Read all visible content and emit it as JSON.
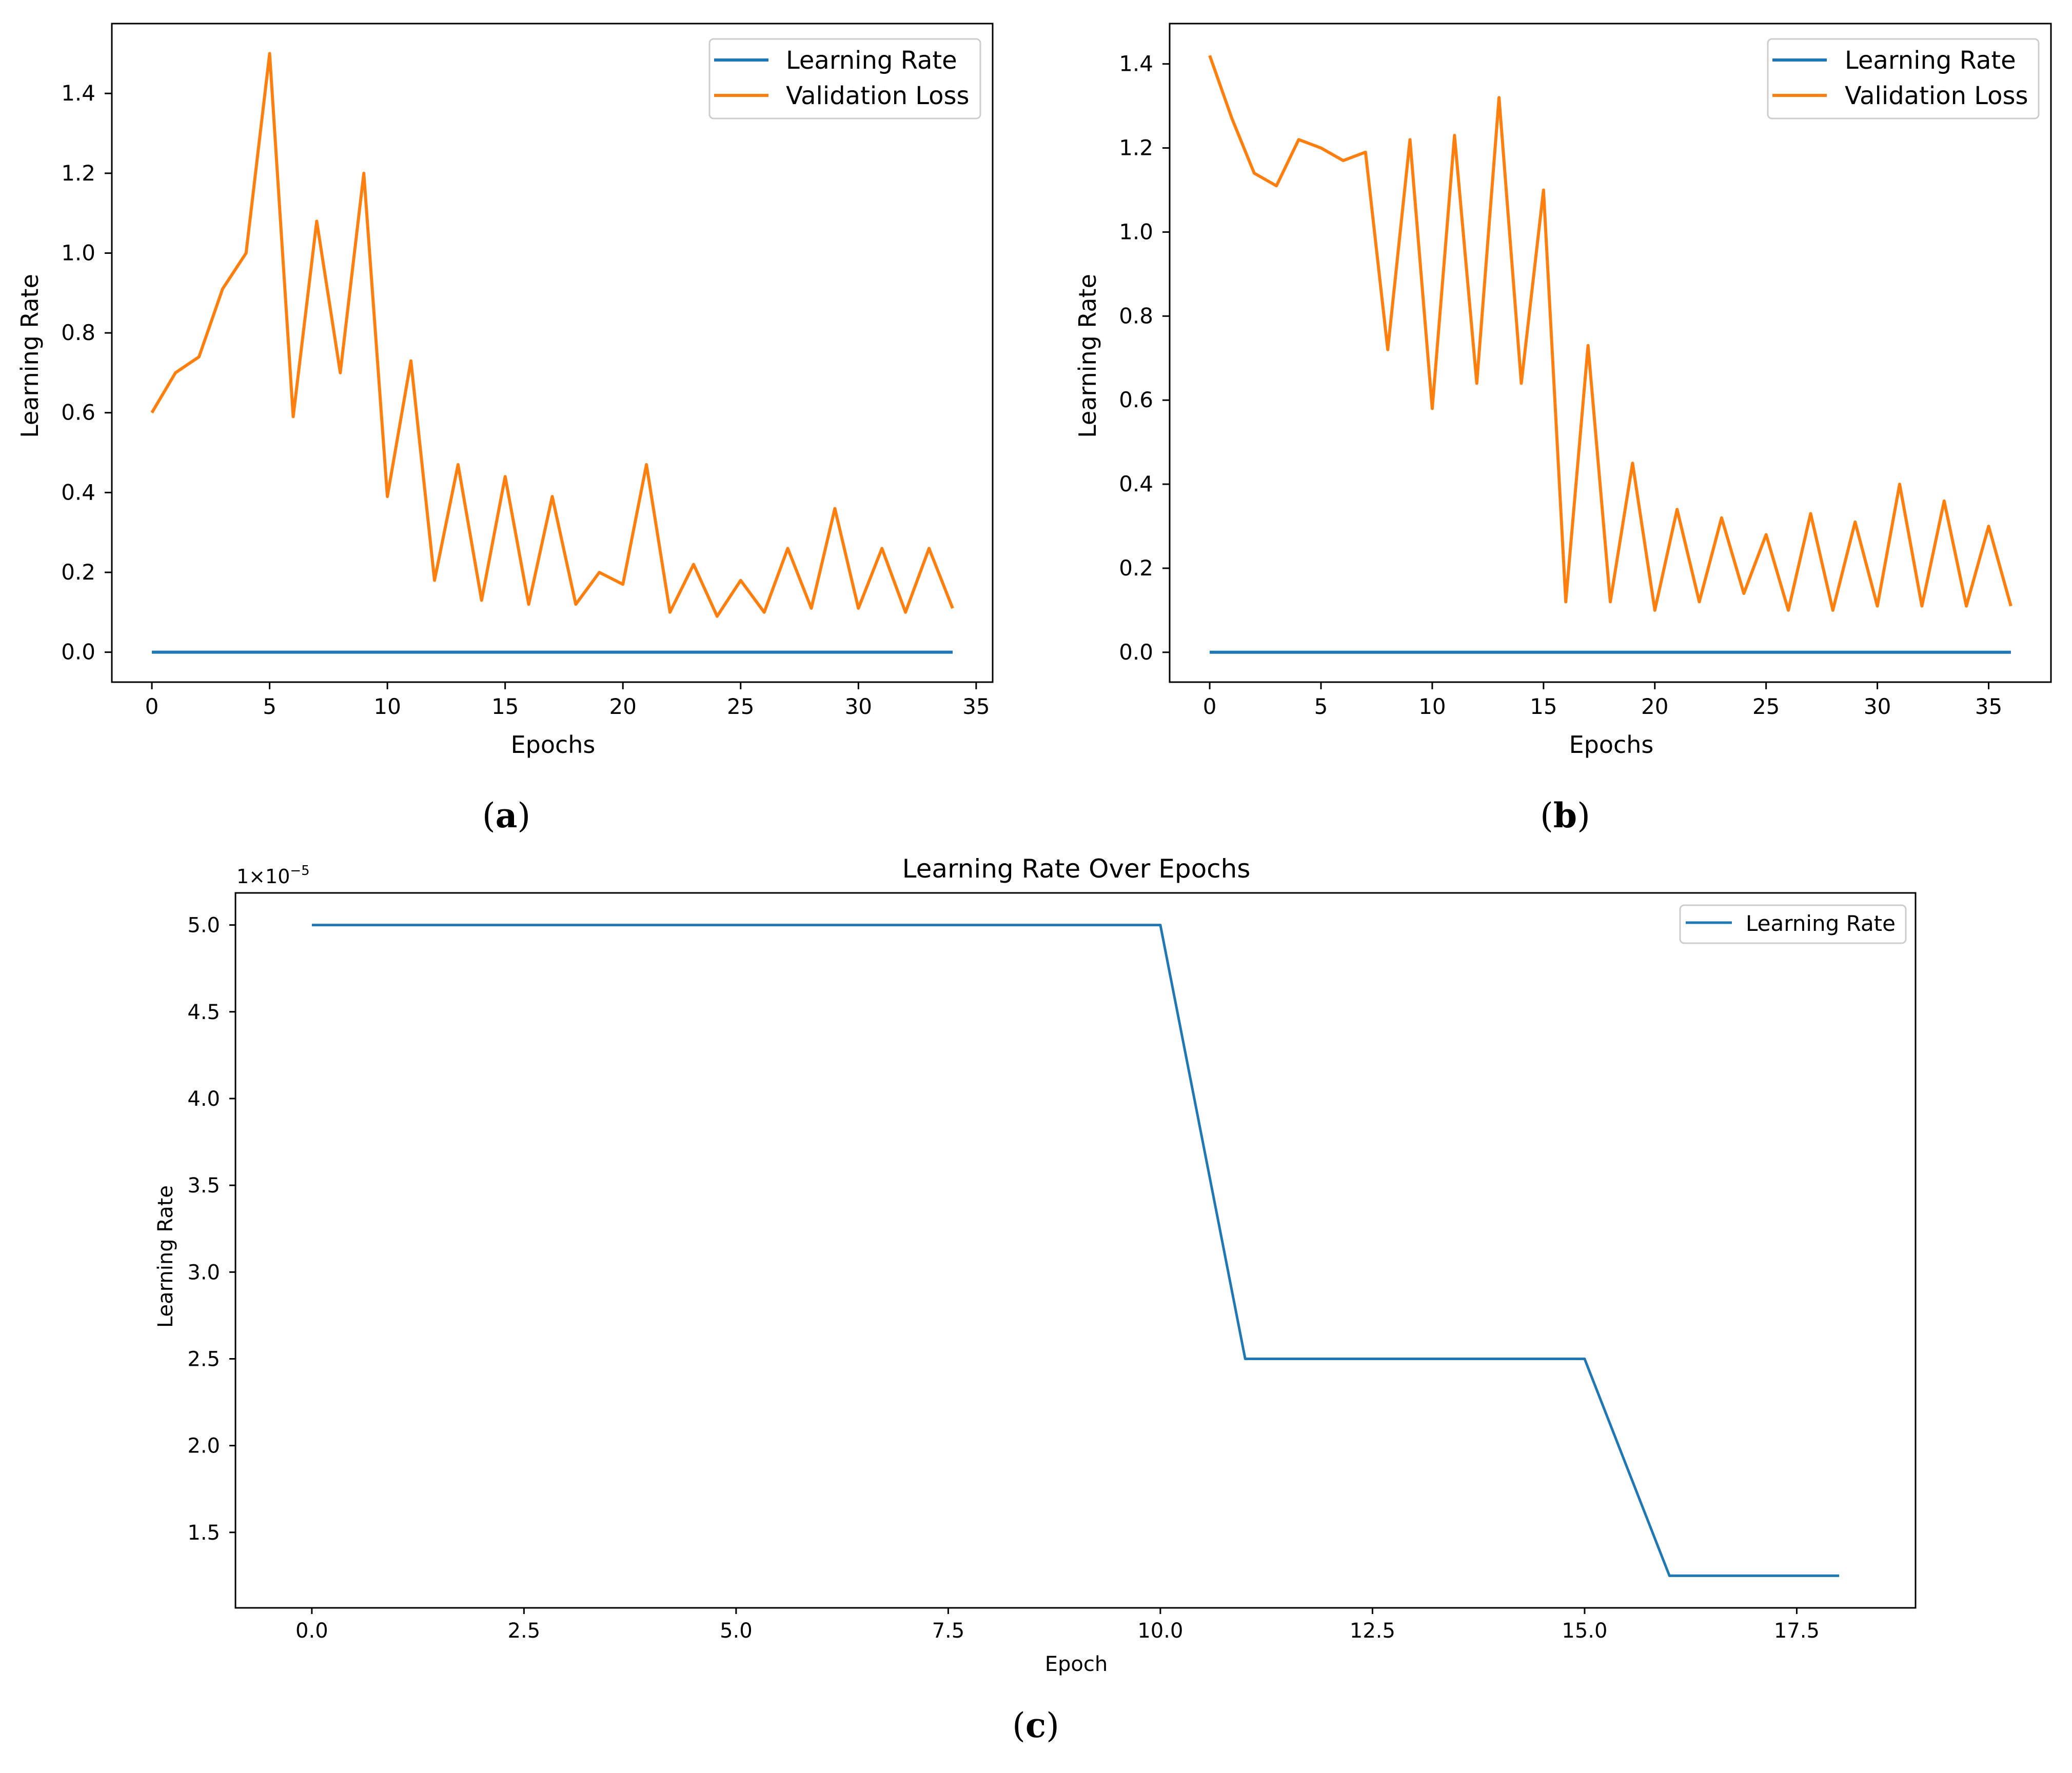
{
  "colors": {
    "learning_rate": "#1f77b4",
    "validation_loss": "#ff7f0e"
  },
  "panels": {
    "a": {
      "caption": "a"
    },
    "b": {
      "caption": "b"
    },
    "c": {
      "caption": "c",
      "offset_text_base": "1×10",
      "offset_text_exp": "−5"
    }
  },
  "chart_data": [
    {
      "id": "a",
      "type": "line",
      "title": "",
      "xlabel": "Epochs",
      "ylabel": "Learning Rate",
      "xlim": [
        -1.7,
        35.7
      ],
      "ylim": [
        -0.075,
        1.575
      ],
      "xticks": [
        0,
        5,
        10,
        15,
        20,
        25,
        30,
        35
      ],
      "xtick_labels": [
        "0",
        "5",
        "10",
        "15",
        "20",
        "25",
        "30",
        "35"
      ],
      "yticks": [
        0.0,
        0.2,
        0.4,
        0.6,
        0.8,
        1.0,
        1.2,
        1.4
      ],
      "ytick_labels": [
        "0.0",
        "0.2",
        "0.4",
        "0.6",
        "0.8",
        "1.0",
        "1.2",
        "1.4"
      ],
      "legend": "upper right",
      "grid": false,
      "series": [
        {
          "name": "Learning Rate",
          "color": "#1f77b4",
          "x": [
            0,
            5,
            10,
            15,
            20,
            25,
            30,
            34
          ],
          "values": [
            5e-05,
            5e-05,
            5e-05,
            2.5e-05,
            2.5e-05,
            1.25e-05,
            1.25e-05,
            1.25e-05
          ]
        },
        {
          "name": "Validation Loss",
          "color": "#ff7f0e",
          "x": [
            0,
            1,
            2,
            3,
            4,
            5,
            6,
            7,
            8,
            9,
            10,
            11,
            12,
            13,
            14,
            15,
            16,
            17,
            18,
            19,
            20,
            21,
            22,
            23,
            24,
            25,
            26,
            27,
            28,
            29,
            30,
            31,
            32,
            33,
            34
          ],
          "values": [
            0.6,
            0.7,
            0.74,
            0.91,
            1.0,
            1.5,
            0.59,
            1.08,
            0.7,
            1.2,
            0.39,
            0.73,
            0.18,
            0.47,
            0.13,
            0.44,
            0.12,
            0.39,
            0.12,
            0.2,
            0.17,
            0.47,
            0.1,
            0.22,
            0.09,
            0.18,
            0.1,
            0.26,
            0.11,
            0.36,
            0.11,
            0.26,
            0.1,
            0.26,
            0.11
          ]
        }
      ]
    },
    {
      "id": "b",
      "type": "line",
      "title": "",
      "xlabel": "Epochs",
      "ylabel": "Learning Rate",
      "xlim": [
        -1.8,
        37.8
      ],
      "ylim": [
        -0.071,
        1.496
      ],
      "xticks": [
        0,
        5,
        10,
        15,
        20,
        25,
        30,
        35
      ],
      "xtick_labels": [
        "0",
        "5",
        "10",
        "15",
        "20",
        "25",
        "30",
        "35"
      ],
      "yticks": [
        0.0,
        0.2,
        0.4,
        0.6,
        0.8,
        1.0,
        1.2,
        1.4
      ],
      "ytick_labels": [
        "0.0",
        "0.2",
        "0.4",
        "0.6",
        "0.8",
        "1.0",
        "1.2",
        "1.4"
      ],
      "legend": "upper right",
      "grid": false,
      "series": [
        {
          "name": "Learning Rate",
          "color": "#1f77b4",
          "x": [
            0,
            5,
            10,
            15,
            20,
            25,
            30,
            36
          ],
          "values": [
            5e-05,
            5e-05,
            5e-05,
            2.5e-05,
            2.5e-05,
            1.25e-05,
            1.25e-05,
            1.25e-05
          ]
        },
        {
          "name": "Validation Loss",
          "color": "#ff7f0e",
          "x": [
            0,
            1,
            2,
            3,
            4,
            5,
            6,
            7,
            8,
            9,
            10,
            11,
            12,
            13,
            14,
            15,
            16,
            17,
            18,
            19,
            20,
            21,
            22,
            23,
            24,
            25,
            26,
            27,
            28,
            29,
            30,
            31,
            32,
            33,
            34,
            35,
            36
          ],
          "values": [
            1.42,
            1.27,
            1.14,
            1.11,
            1.22,
            1.2,
            1.17,
            1.19,
            0.72,
            1.22,
            0.58,
            1.23,
            0.64,
            1.32,
            0.64,
            1.1,
            0.12,
            0.73,
            0.12,
            0.45,
            0.1,
            0.34,
            0.12,
            0.32,
            0.14,
            0.28,
            0.1,
            0.33,
            0.1,
            0.31,
            0.11,
            0.4,
            0.11,
            0.36,
            0.11,
            0.3,
            0.11
          ]
        }
      ]
    },
    {
      "id": "c",
      "type": "line",
      "title": "Learning Rate Over Epochs",
      "xlabel": "Epoch",
      "ylabel": "Learning Rate",
      "xlim": [
        -0.9,
        18.9
      ],
      "ylim": [
        1.065,
        5.185
      ],
      "y_scale_note": "values shown ×1e-5",
      "xticks": [
        0.0,
        2.5,
        5.0,
        7.5,
        10.0,
        12.5,
        15.0,
        17.5
      ],
      "xtick_labels": [
        "0.0",
        "2.5",
        "5.0",
        "7.5",
        "10.0",
        "12.5",
        "15.0",
        "17.5"
      ],
      "yticks": [
        1.5,
        2.0,
        2.5,
        3.0,
        3.5,
        4.0,
        4.5,
        5.0
      ],
      "ytick_labels": [
        "1.5",
        "2.0",
        "2.5",
        "3.0",
        "3.5",
        "4.0",
        "4.5",
        "5.0"
      ],
      "legend": "upper right",
      "grid": false,
      "series": [
        {
          "name": "Learning Rate",
          "color": "#1f77b4",
          "x": [
            0,
            1,
            2,
            3,
            4,
            5,
            6,
            7,
            8,
            9,
            10,
            11,
            12,
            13,
            14,
            15,
            16,
            17,
            18
          ],
          "values": [
            5.0,
            5.0,
            5.0,
            5.0,
            5.0,
            5.0,
            5.0,
            5.0,
            5.0,
            5.0,
            5.0,
            2.5,
            2.5,
            2.5,
            2.5,
            2.5,
            1.25,
            1.25,
            1.25
          ]
        }
      ]
    }
  ]
}
